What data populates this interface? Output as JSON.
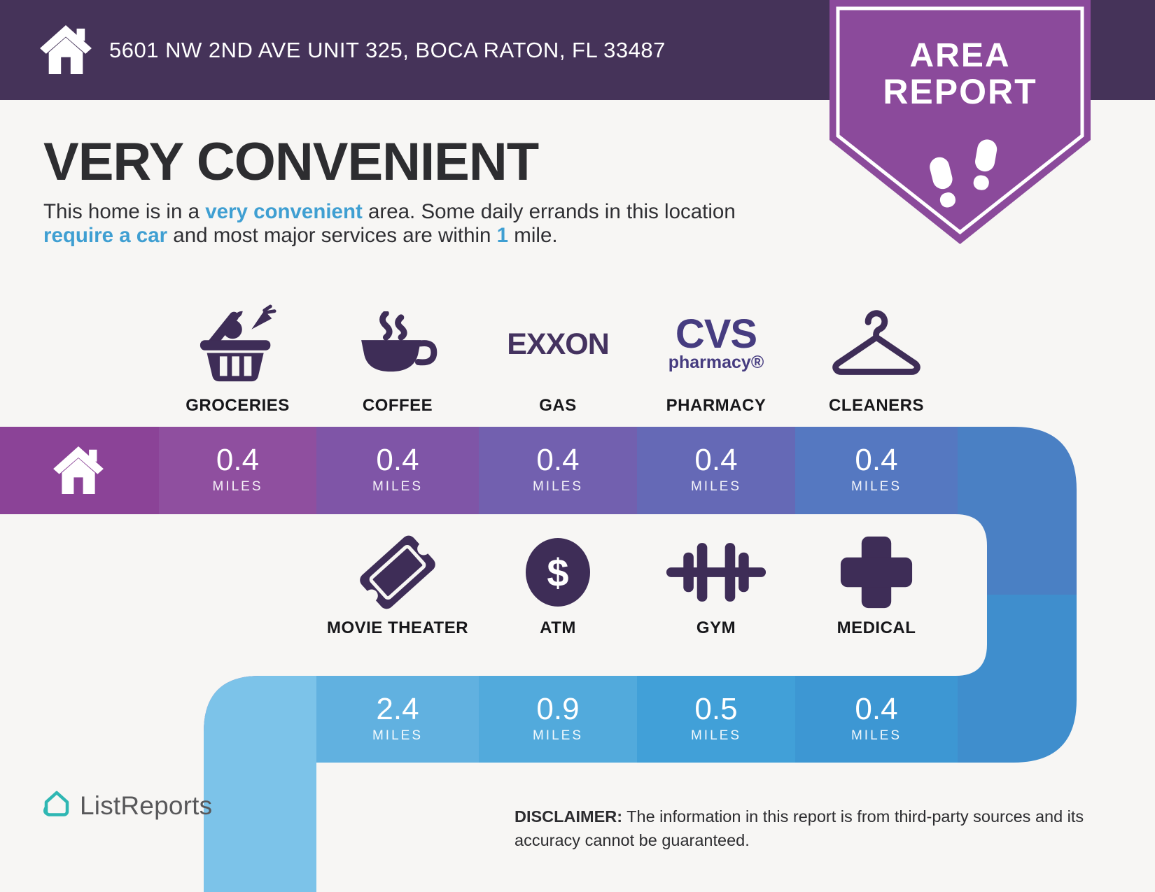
{
  "header": {
    "address": "5601 NW 2ND AVE UNIT 325, BOCA RATON, FL 33487",
    "bar_color": "#453359"
  },
  "badge": {
    "line1": "AREA",
    "line2": "REPORT",
    "color": "#8b4a9b",
    "icon": "footprints-icon"
  },
  "intro": {
    "title": "VERY CONVENIENT",
    "highlight_color": "#3f9fd2",
    "description_parts": [
      {
        "text": "This home is in a ",
        "highlight": false
      },
      {
        "text": "very convenient",
        "highlight": true
      },
      {
        "text": " area. Some daily errands in this location ",
        "highlight": false
      },
      {
        "text": "require a car",
        "highlight": true
      },
      {
        "text": " and most major services are within ",
        "highlight": false
      },
      {
        "text": "1",
        "highlight": true
      },
      {
        "text": " mile.",
        "highlight": false
      }
    ]
  },
  "miles_unit": "MILES",
  "rows": [
    {
      "items": [
        {
          "label": "GROCERIES",
          "icon": "groceries-basket-icon",
          "miles": "0.4"
        },
        {
          "label": "COFFEE",
          "icon": "coffee-cup-icon",
          "miles": "0.4"
        },
        {
          "label": "GAS",
          "icon": "exxon-logo",
          "brand": "EXXON",
          "miles": "0.4"
        },
        {
          "label": "PHARMACY",
          "icon": "cvs-pharmacy-logo",
          "brand_line1": "CVS",
          "brand_line2": "pharmacy®",
          "miles": "0.4"
        },
        {
          "label": "CLEANERS",
          "icon": "hanger-icon",
          "miles": "0.4"
        }
      ]
    },
    {
      "items": [
        {
          "label": "MOVIE THEATER",
          "icon": "ticket-icon",
          "miles": "2.4"
        },
        {
          "label": "ATM",
          "icon": "dollar-circle-icon",
          "symbol": "$",
          "miles": "0.9"
        },
        {
          "label": "GYM",
          "icon": "dumbbell-icon",
          "miles": "0.5"
        },
        {
          "label": "MEDICAL",
          "icon": "medical-cross-icon",
          "miles": "0.4"
        }
      ]
    }
  ],
  "colors": {
    "band1": [
      "#8b4397",
      "#8f4f9f",
      "#7f55a7",
      "#7260af",
      "#6569b6",
      "#5578c1"
    ],
    "elbow_top": "#4a80c4",
    "elbow_bottom": "#3f8ecd",
    "band2": [
      "#7cc3e9",
      "#61b1e0",
      "#52aadc",
      "#41a0d8",
      "#3d97d3"
    ],
    "icon": "#3e2d57",
    "exxon": "#44325f",
    "cvs": "#463c80",
    "logo_teal": "#2fb7b3"
  },
  "footer": {
    "brand": "ListReports",
    "disclaimer_label": "DISCLAIMER:",
    "disclaimer_text": " The information in this report is from third-party sources and its accuracy cannot be guaranteed."
  }
}
